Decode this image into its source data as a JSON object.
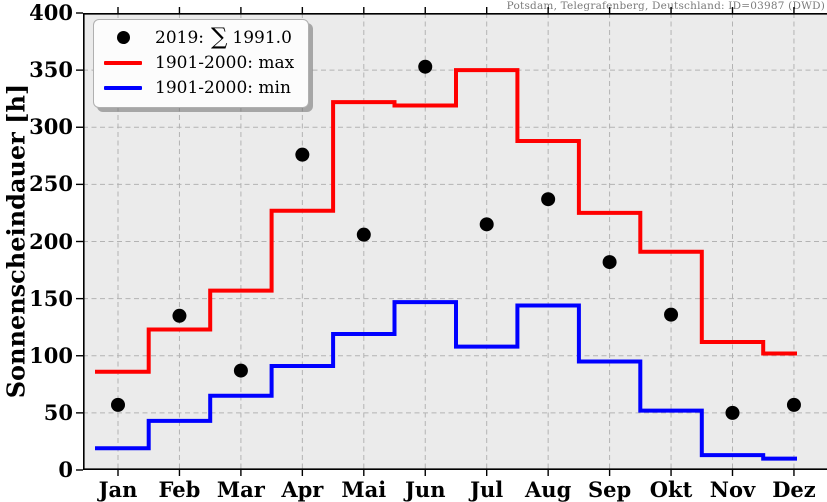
{
  "title": "Potsdam, Telegrafenberg, Deutschland: ID=03987 (DWD)",
  "y_axis_label": "Sonnenscheindauer [h]",
  "legend": {
    "dots_entry": {
      "prefix": "2019:",
      "sum_symbol": "∑",
      "value": "1991.0"
    },
    "max_entry": {
      "label": "1901-2000: max"
    },
    "min_entry": {
      "label": "1901-2000: min"
    }
  },
  "colors": {
    "dots": "#000000",
    "max_line": "#ff0000",
    "min_line": "#0000ff",
    "plot_bg": "#ebebeb",
    "grid": "#b3b3b3",
    "spine": "#000000",
    "title_text": "#7a7a7a"
  },
  "chart_data": {
    "type": "line",
    "title": "Potsdam, Telegrafenberg, Deutschland: ID=03987 (DWD)",
    "xlabel": "",
    "ylabel": "Sonnenscheindauer [h]",
    "categories": [
      "Jan",
      "Feb",
      "Mar",
      "Apr",
      "Mai",
      "Jun",
      "Jul",
      "Aug",
      "Sep",
      "Okt",
      "Nov",
      "Dez"
    ],
    "ylim": [
      0,
      400
    ],
    "yticks": [
      0,
      50,
      100,
      150,
      200,
      250,
      300,
      350,
      400
    ],
    "grid": true,
    "grid_style": "dashed",
    "legend_position": "upper left",
    "series": [
      {
        "name": "2019: ∑ 1991.0",
        "style": "scatter",
        "color": "#000000",
        "values": [
          57,
          135,
          87,
          276,
          206,
          353,
          215,
          237,
          182,
          136,
          50,
          57
        ]
      },
      {
        "name": "1901-2000: max",
        "style": "step",
        "color": "#ff0000",
        "values": [
          86,
          123,
          157,
          227,
          322,
          319,
          350,
          288,
          225,
          191,
          112,
          102
        ]
      },
      {
        "name": "1901-2000: min",
        "style": "step",
        "color": "#0000ff",
        "values": [
          19,
          43,
          65,
          91,
          119,
          147,
          108,
          144,
          95,
          52,
          13,
          10
        ]
      }
    ]
  }
}
